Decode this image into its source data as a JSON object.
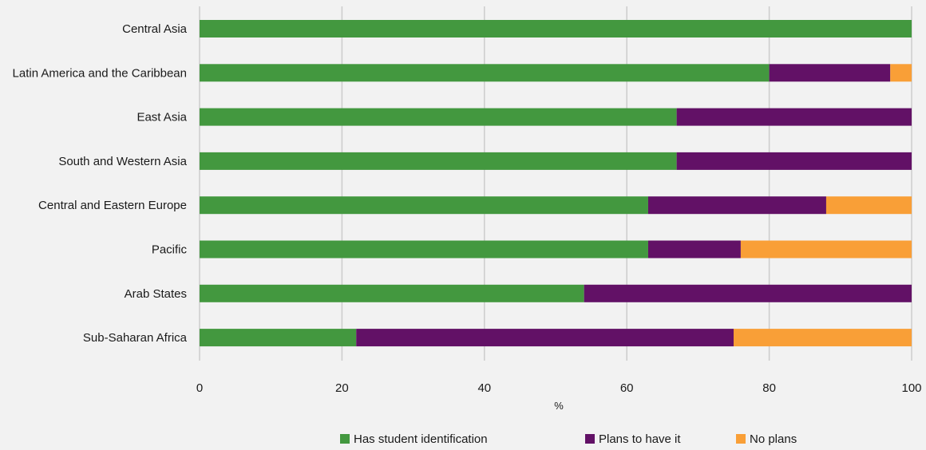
{
  "chart_data": {
    "type": "bar",
    "orientation": "horizontal",
    "stacked": true,
    "categories": [
      "Central Asia",
      "Latin America and the Caribbean",
      "East Asia",
      "South and Western Asia",
      "Central and Eastern Europe",
      "Pacific",
      "Arab States",
      "Sub-Saharan Africa"
    ],
    "series": [
      {
        "name": "Has student identification",
        "color": "#43983f",
        "values": [
          100,
          80,
          67,
          67,
          63,
          63,
          54,
          22
        ]
      },
      {
        "name": "Plans to have it",
        "color": "#621166",
        "values": [
          0,
          17,
          33,
          33,
          25,
          13,
          46,
          53
        ]
      },
      {
        "name": "No plans",
        "color": "#f99f37",
        "values": [
          0,
          3,
          0,
          0,
          12,
          24,
          0,
          25
        ]
      }
    ],
    "xlabel": "%",
    "xlim": [
      0,
      100
    ],
    "xticks": [
      "0",
      "20",
      "40",
      "60",
      "80",
      "100"
    ],
    "grid": true,
    "legend_position": "bottom"
  }
}
